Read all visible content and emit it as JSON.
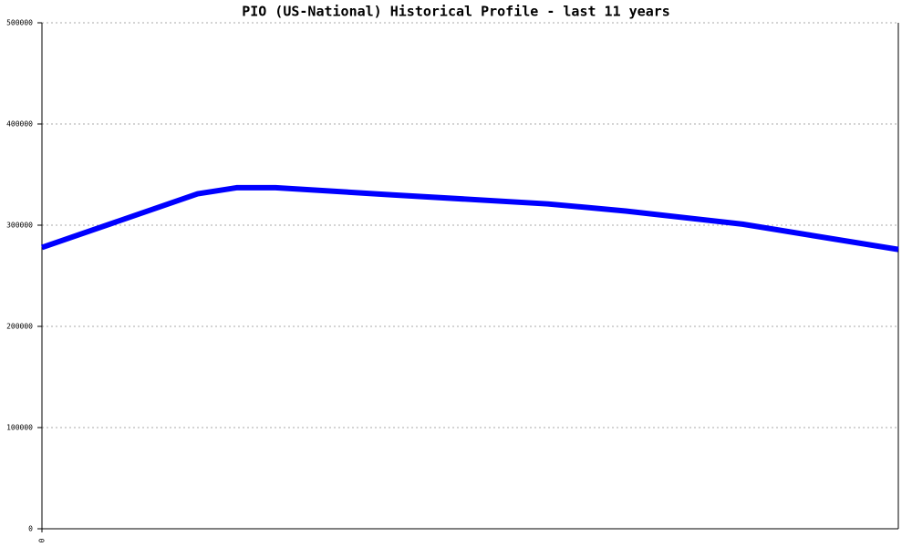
{
  "chart_data": {
    "type": "line",
    "title": "PIO (US-National) Historical Profile - last 11 years",
    "x": [
      0,
      4,
      5,
      6,
      9,
      13,
      15,
      18,
      22
    ],
    "values": [
      278000,
      331000,
      337000,
      337000,
      330000,
      321000,
      314000,
      301000,
      276000
    ],
    "color": "#0000ff",
    "xlim": [
      0,
      22
    ],
    "xticks": [
      0
    ],
    "ylim": [
      0,
      500000
    ],
    "yticks": [
      0,
      100000,
      200000,
      300000,
      400000,
      500000
    ],
    "grid": true
  }
}
